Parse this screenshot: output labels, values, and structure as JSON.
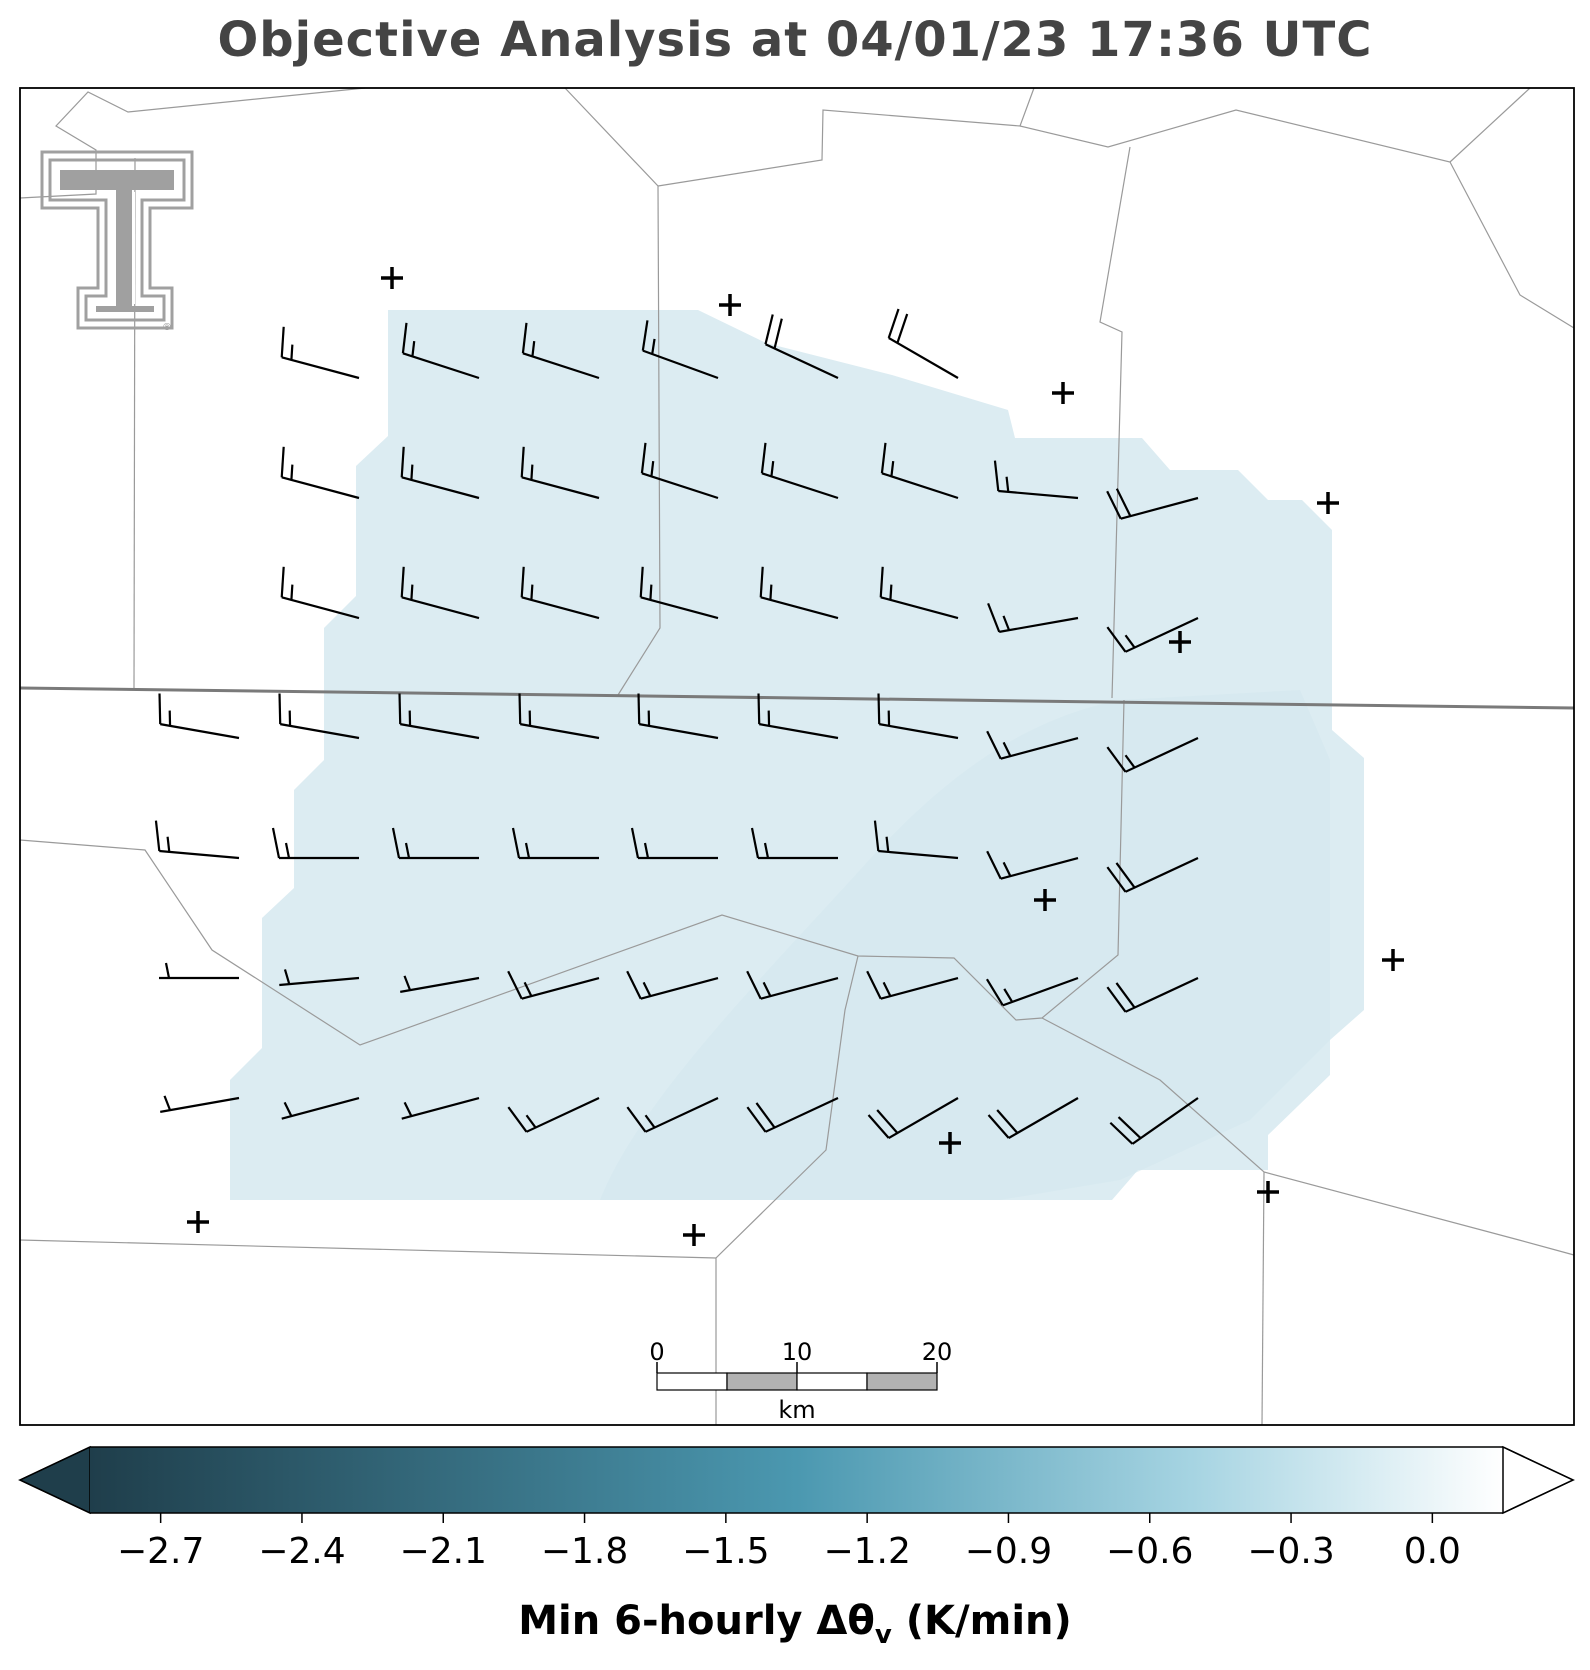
{
  "title": "Objective Analysis at 04/01/23 17:36 UTC",
  "colorbar": {
    "label": "Min 6-hourly Δθ",
    "label_subscript": "v",
    "label_units": " (K/min)",
    "ticks": [
      "−2.7",
      "−2.4",
      "−2.1",
      "−1.8",
      "−1.5",
      "−1.2",
      "−0.9",
      "−0.6",
      "−0.3",
      "0.0"
    ],
    "tick_values": [
      -2.7,
      -2.4,
      -2.1,
      -1.8,
      -1.5,
      -1.2,
      -0.9,
      -0.6,
      -0.3,
      0.0
    ],
    "range": [
      -2.85,
      0.15
    ],
    "extend": "both",
    "color_min": "#1f3e4b",
    "color_mid": "#4b98b0",
    "color_light": "#a6d4e2",
    "color_max": "#ffffff"
  },
  "scale_bar": {
    "labels": [
      "0",
      "10",
      "20"
    ],
    "unit": "km",
    "fill_colors": [
      "#ffffff",
      "#b2b2b2"
    ]
  },
  "logo": {
    "name": "Texas Tech Double T",
    "color": "#a0a0a0",
    "mark": "®"
  },
  "field": {
    "approx_value": -0.45,
    "fill_color": "#dcecf2"
  },
  "wind_barbs": {
    "speed_units": "kt",
    "rows": [
      [
        null,
        {
          "d": 285,
          "s": 15
        },
        {
          "d": 288,
          "s": 15
        },
        {
          "d": 288,
          "s": 15
        },
        {
          "d": 290,
          "s": 15
        },
        {
          "d": 295,
          "s": 20
        },
        {
          "d": 300,
          "s": 20
        },
        null,
        null
      ],
      [
        null,
        {
          "d": 285,
          "s": 15
        },
        {
          "d": 285,
          "s": 15
        },
        {
          "d": 285,
          "s": 15
        },
        {
          "d": 288,
          "s": 15
        },
        {
          "d": 288,
          "s": 15
        },
        {
          "d": 288,
          "s": 15
        },
        {
          "d": 275,
          "s": 15
        },
        {
          "d": 255,
          "s": 20
        }
      ],
      [
        null,
        {
          "d": 285,
          "s": 15
        },
        {
          "d": 285,
          "s": 15
        },
        {
          "d": 285,
          "s": 15
        },
        {
          "d": 285,
          "s": 15
        },
        {
          "d": 285,
          "s": 15
        },
        {
          "d": 285,
          "s": 15
        },
        {
          "d": 260,
          "s": 15
        },
        {
          "d": 245,
          "s": 15
        }
      ],
      [
        {
          "d": 280,
          "s": 15
        },
        {
          "d": 280,
          "s": 15
        },
        {
          "d": 280,
          "s": 15
        },
        {
          "d": 280,
          "s": 15
        },
        {
          "d": 280,
          "s": 15
        },
        {
          "d": 280,
          "s": 15
        },
        {
          "d": 280,
          "s": 15
        },
        {
          "d": 255,
          "s": 15
        },
        {
          "d": 245,
          "s": 15
        }
      ],
      [
        {
          "d": 275,
          "s": 15
        },
        {
          "d": 270,
          "s": 15
        },
        {
          "d": 270,
          "s": 15
        },
        {
          "d": 270,
          "s": 15
        },
        {
          "d": 270,
          "s": 15
        },
        {
          "d": 270,
          "s": 15
        },
        {
          "d": 275,
          "s": 15
        },
        {
          "d": 255,
          "s": 15
        },
        {
          "d": 245,
          "s": 20
        }
      ],
      [
        {
          "d": 270,
          "s": 5
        },
        {
          "d": 265,
          "s": 5
        },
        {
          "d": 260,
          "s": 5
        },
        {
          "d": 255,
          "s": 15
        },
        {
          "d": 255,
          "s": 15
        },
        {
          "d": 255,
          "s": 15
        },
        {
          "d": 255,
          "s": 15
        },
        {
          "d": 250,
          "s": 15
        },
        {
          "d": 245,
          "s": 20
        }
      ],
      [
        {
          "d": 260,
          "s": 5
        },
        {
          "d": 255,
          "s": 5
        },
        {
          "d": 255,
          "s": 5
        },
        {
          "d": 245,
          "s": 15
        },
        {
          "d": 245,
          "s": 15
        },
        {
          "d": 245,
          "s": 20
        },
        {
          "d": 240,
          "s": 20
        },
        {
          "d": 240,
          "s": 20
        },
        {
          "d": 235,
          "s": 20
        }
      ]
    ]
  },
  "stations": [
    {
      "name": "station-1"
    },
    {
      "name": "station-2"
    },
    {
      "name": "station-3"
    },
    {
      "name": "station-4"
    },
    {
      "name": "station-5"
    },
    {
      "name": "station-6"
    },
    {
      "name": "station-7"
    },
    {
      "name": "station-8"
    },
    {
      "name": "station-9"
    },
    {
      "name": "station-10"
    },
    {
      "name": "station-11"
    },
    {
      "name": "station-12"
    }
  ]
}
